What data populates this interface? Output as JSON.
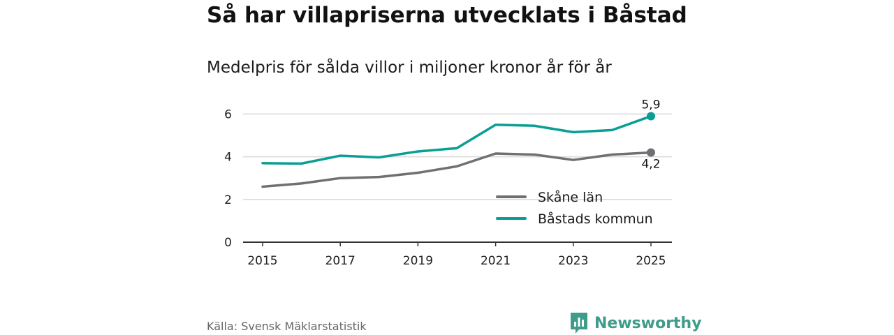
{
  "title": "Så har villapriserna utvecklats i Båstad",
  "subtitle": "Medelpris för sålda villor i miljoner kronor år för år",
  "source": "Källa: Svensk Mäklarstatistik",
  "brand": {
    "name": "Newsworthy",
    "icon": "newsworthy-logo-icon",
    "color": "#3d9c8a"
  },
  "colors": {
    "skane": "#707074",
    "bastad": "#0a9e94",
    "grid": "#d9d9d9",
    "axis": "#333333"
  },
  "chart_data": {
    "type": "line",
    "title": "Så har villapriserna utvecklats i Båstad",
    "subtitle": "Medelpris för sålda villor i miljoner kronor år för år",
    "xlabel": "",
    "ylabel": "",
    "x": [
      2015,
      2016,
      2017,
      2018,
      2019,
      2020,
      2021,
      2022,
      2023,
      2024,
      2025
    ],
    "x_ticks": [
      "2015",
      "2017",
      "2019",
      "2021",
      "2023",
      "2025"
    ],
    "y_ticks": [
      "0",
      "2",
      "4",
      "6"
    ],
    "ylim": [
      0,
      6.5
    ],
    "grid": true,
    "legend_position": "bottom-right",
    "series": [
      {
        "name": "Skåne län",
        "color": "#707074",
        "values": [
          2.6,
          2.75,
          3.0,
          3.05,
          3.25,
          3.55,
          4.15,
          4.1,
          3.85,
          4.1,
          4.2
        ],
        "end_label": "4,2"
      },
      {
        "name": "Båstads kommun",
        "color": "#0a9e94",
        "values": [
          3.7,
          3.68,
          4.05,
          3.97,
          4.25,
          4.4,
          5.5,
          5.45,
          5.15,
          5.25,
          5.9
        ],
        "end_label": "5,9"
      }
    ]
  }
}
